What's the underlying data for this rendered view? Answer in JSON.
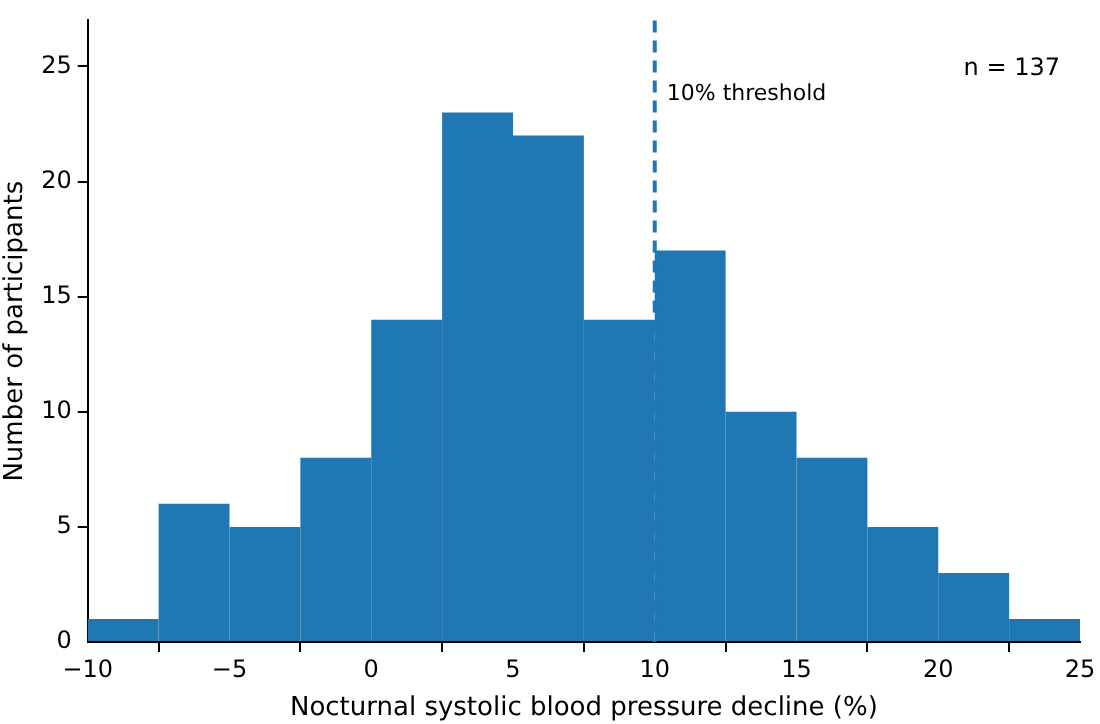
{
  "chart_data": {
    "type": "histogram",
    "xlabel": "Nocturnal systolic blood pressure decline (%)",
    "ylabel": "Number of participants",
    "bins": [
      -10,
      -7.5,
      -5,
      -2.5,
      0,
      2.5,
      5,
      7.5,
      10,
      12.5,
      15,
      17.5,
      20,
      22.5,
      25
    ],
    "values": [
      1,
      6,
      5,
      8,
      14,
      23,
      22,
      14,
      17,
      10,
      8,
      5,
      3,
      1
    ],
    "color": "#1f77b4",
    "xlim": [
      -10,
      25
    ],
    "xticks": [
      {
        "value": -10,
        "label": "−10"
      },
      {
        "value": -5,
        "label": "−5"
      },
      0,
      5,
      10,
      15,
      20,
      25
    ],
    "ylim": [
      0,
      27
    ],
    "yticks": [
      0,
      5,
      10,
      15,
      20,
      25
    ],
    "grid": false,
    "legend": false,
    "ref_lines": [
      {
        "axis": "x",
        "value": 10,
        "label": "10% threshold",
        "color": "#1f77b4",
        "line_style": "dashed"
      }
    ],
    "annotations": [
      "n = 137"
    ]
  }
}
